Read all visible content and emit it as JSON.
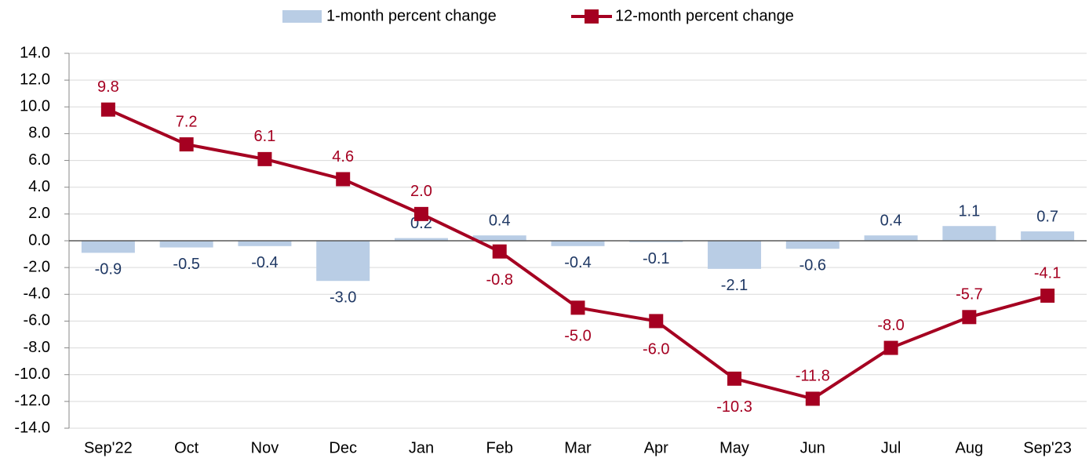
{
  "chart_data": {
    "type": "bar-line",
    "categories": [
      "Sep'22",
      "Oct",
      "Nov",
      "Dec",
      "Jan",
      "Feb",
      "Mar",
      "Apr",
      "May",
      "Jun",
      "Jul",
      "Aug",
      "Sep'23"
    ],
    "series": [
      {
        "name": "1-month percent change",
        "type": "bar",
        "color": "#b9cde5",
        "label_color": "#1f3864",
        "values": [
          -0.9,
          -0.5,
          -0.4,
          -3.0,
          0.2,
          0.4,
          -0.4,
          -0.1,
          -2.1,
          -0.6,
          0.4,
          1.1,
          0.7
        ],
        "value_labels": [
          "-0.9",
          "-0.5",
          "-0.4",
          "-3.0",
          "0.2",
          "0.4",
          "-0.4",
          "-0.1",
          "-2.1",
          "-0.6",
          "0.4",
          "1.1",
          "0.7"
        ]
      },
      {
        "name": "12-month percent change",
        "type": "line",
        "color": "#a50021",
        "label_color": "#a50021",
        "values": [
          9.8,
          7.2,
          6.1,
          4.6,
          2.0,
          -0.8,
          -5.0,
          -6.0,
          -10.3,
          -11.8,
          -8.0,
          -5.7,
          -4.1
        ],
        "value_labels": [
          "9.8",
          "7.2",
          "6.1",
          "4.6",
          "2.0",
          "-0.8",
          "-5.0",
          "-6.0",
          "-10.3",
          "-11.8",
          "-8.0",
          "-5.7",
          "-4.1"
        ]
      }
    ],
    "ylim": [
      -14,
      14
    ],
    "yticks": [
      {
        "value": -14,
        "label": "-14.0"
      },
      {
        "value": -12,
        "label": "-12.0"
      },
      {
        "value": -10,
        "label": "-10.0"
      },
      {
        "value": -8,
        "label": "-8.0"
      },
      {
        "value": -6,
        "label": "-6.0"
      },
      {
        "value": -4,
        "label": "-4.0"
      },
      {
        "value": -2,
        "label": "-2.0"
      },
      {
        "value": 0,
        "label": "0.0"
      },
      {
        "value": 2,
        "label": "2.0"
      },
      {
        "value": 4,
        "label": "4.0"
      },
      {
        "value": 6,
        "label": "6.0"
      },
      {
        "value": 8,
        "label": "8.0"
      },
      {
        "value": 10,
        "label": "10.0"
      },
      {
        "value": 12,
        "label": "12.0"
      },
      {
        "value": 14,
        "label": "14.0"
      }
    ],
    "grid": true,
    "legend": "top"
  }
}
